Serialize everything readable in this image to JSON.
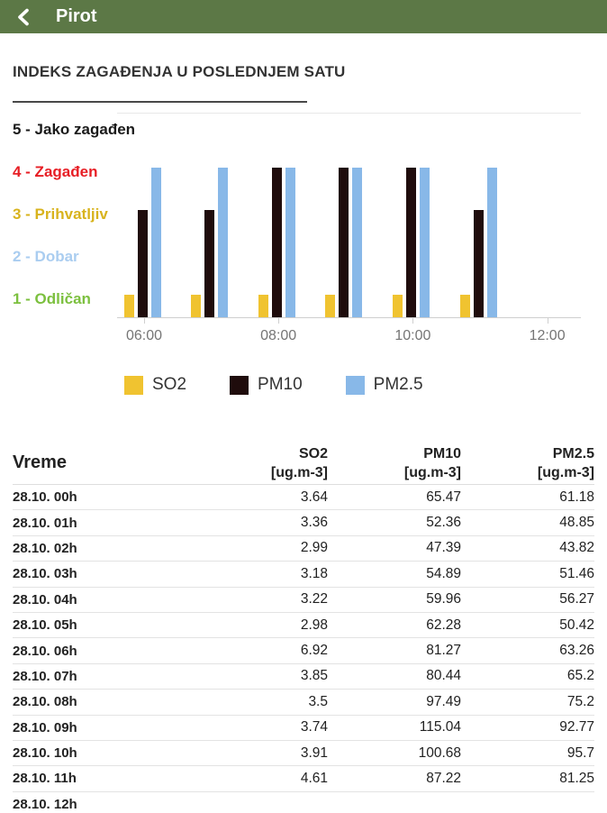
{
  "header": {
    "title": "Pirot"
  },
  "section_title": "INDEKS ZAGAĐENJA U POSLEDNJEM SATU",
  "chart_data": {
    "type": "bar",
    "title": "INDEKS ZAGAĐENJA U POSLEDNJEM SATU",
    "x": [
      "06:00",
      "07:00",
      "08:00",
      "09:00",
      "10:00",
      "11:00"
    ],
    "x_axis_ticks": [
      "06:00",
      "08:00",
      "10:00",
      "12:00"
    ],
    "ylim": [
      0,
      5
    ],
    "grid": "top-line-and-baseline-only",
    "legend_position": "bottom",
    "series": [
      {
        "name": "SO2",
        "color": "#f0c330",
        "values": [
          1,
          1,
          1,
          1,
          1,
          1
        ]
      },
      {
        "name": "PM10",
        "color": "#1f0c0c",
        "values": [
          3,
          3,
          4,
          4,
          4,
          3
        ]
      },
      {
        "name": "PM2.5",
        "color": "#88b8e8",
        "values": [
          4,
          4,
          4,
          4,
          4,
          4
        ]
      }
    ],
    "y_axis_levels": [
      {
        "value": 5,
        "label": "5 - Jako zagađen",
        "color": "#1a1a1a"
      },
      {
        "value": 4,
        "label": "4 - Zagađen",
        "color": "#e71e25"
      },
      {
        "value": 3,
        "label": "3 - Prihvatljiv",
        "color": "#d8b31d"
      },
      {
        "value": 2,
        "label": "2 - Dobar",
        "color": "#aacdf0"
      },
      {
        "value": 1,
        "label": "1 - Odličan",
        "color": "#7cc03f"
      }
    ]
  },
  "table": {
    "time_header": "Vreme",
    "unit_label": "[ug.m-3]",
    "columns": [
      "SO2",
      "PM10",
      "PM2.5"
    ],
    "rows": [
      [
        "28.10. 00h",
        "3.64",
        "65.47",
        "61.18"
      ],
      [
        "28.10. 01h",
        "3.36",
        "52.36",
        "48.85"
      ],
      [
        "28.10. 02h",
        "2.99",
        "47.39",
        "43.82"
      ],
      [
        "28.10. 03h",
        "3.18",
        "54.89",
        "51.46"
      ],
      [
        "28.10. 04h",
        "3.22",
        "59.96",
        "56.27"
      ],
      [
        "28.10. 05h",
        "2.98",
        "62.28",
        "50.42"
      ],
      [
        "28.10. 06h",
        "6.92",
        "81.27",
        "63.26"
      ],
      [
        "28.10. 07h",
        "3.85",
        "80.44",
        "65.2"
      ],
      [
        "28.10. 08h",
        "3.5",
        "97.49",
        "75.2"
      ],
      [
        "28.10. 09h",
        "3.74",
        "115.04",
        "92.77"
      ],
      [
        "28.10. 10h",
        "3.91",
        "100.68",
        "95.7"
      ],
      [
        "28.10. 11h",
        "4.61",
        "87.22",
        "81.25"
      ],
      [
        "28.10. 12h",
        "",
        "",
        ""
      ]
    ]
  }
}
